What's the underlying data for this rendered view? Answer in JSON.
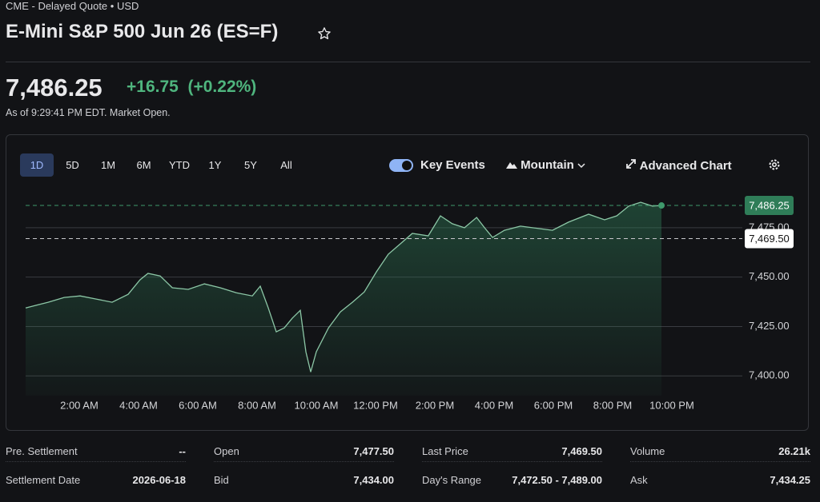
{
  "header": {
    "exchange": "CME - Delayed Quote • USD",
    "title": "E-Mini S&P 500 Jun 26 (ES=F)"
  },
  "quote": {
    "price": "7,486.25",
    "change": "+16.75",
    "change_pct": "(+0.22%)",
    "as_of": "As of 9:29:41 PM EDT. Market Open."
  },
  "toolbar": {
    "ranges": [
      "1D",
      "5D",
      "1M",
      "6M",
      "YTD",
      "1Y",
      "5Y",
      "All"
    ],
    "key_events": "Key Events",
    "chart_type": "Mountain",
    "advanced": "Advanced Chart"
  },
  "chart_data": {
    "type": "area",
    "color": "#8cc7a6",
    "x": [
      0.19,
      0.95,
      1.49,
      2.03,
      2.57,
      3.11,
      3.65,
      4.05,
      4.32,
      4.73,
      5.14,
      5.68,
      6.22,
      6.76,
      7.3,
      7.84,
      8.11,
      8.38,
      8.65,
      8.92,
      9.19,
      9.46,
      9.65,
      9.81,
      10,
      10.41,
      10.81,
      11.22,
      11.62,
      12.03,
      12.43,
      12.84,
      13.24,
      13.78,
      14.19,
      14.59,
      15,
      15.41,
      15.68,
      15.95,
      16.35,
      16.89,
      17.97,
      18.51,
      19.19,
      19.73,
      20.14,
      20.54,
      20.95,
      21.35,
      21.65
    ],
    "values": [
      7434.4,
      7437.3,
      7439.7,
      7440.5,
      7438.9,
      7437.3,
      7441.3,
      7448.6,
      7451.9,
      7450.6,
      7444.6,
      7443.8,
      7446.6,
      7444.6,
      7442.1,
      7440.5,
      7445.4,
      7434.4,
      7422.3,
      7424.3,
      7429.2,
      7433.2,
      7412.2,
      7402,
      7412.2,
      7424.3,
      7432.4,
      7437.3,
      7442.5,
      7452.7,
      7461.6,
      7466.9,
      7472.1,
      7470.9,
      7481,
      7477,
      7475,
      7480.2,
      7475,
      7470.1,
      7473.7,
      7475.8,
      7473.7,
      7477.8,
      7481.8,
      7479,
      7481,
      7485.9,
      7487.9,
      7485.9,
      7486.25
    ],
    "xlim": [
      0.19,
      24
    ],
    "xticks": [
      {
        "value": 2,
        "label": "2:00 AM"
      },
      {
        "value": 4,
        "label": "4:00 AM"
      },
      {
        "value": 6,
        "label": "6:00 AM"
      },
      {
        "value": 8,
        "label": "8:00 AM"
      },
      {
        "value": 10,
        "label": "10:00 AM"
      },
      {
        "value": 12,
        "label": "12:00 PM"
      },
      {
        "value": 14,
        "label": "2:00 PM"
      },
      {
        "value": 16,
        "label": "4:00 PM"
      },
      {
        "value": 18,
        "label": "6:00 PM"
      },
      {
        "value": 20,
        "label": "8:00 PM"
      },
      {
        "value": 22,
        "label": "10:00 PM"
      }
    ],
    "ylim": [
      7390,
      7498
    ],
    "yticks": [
      {
        "value": 7400,
        "label": "7,400.00"
      },
      {
        "value": 7425,
        "label": "7,425.00"
      },
      {
        "value": 7450,
        "label": "7,450.00"
      },
      {
        "value": 7475,
        "label": "7,475.00"
      }
    ],
    "grid": true,
    "last": {
      "value": 7486.25,
      "label": "7,486.25"
    },
    "prev_close": {
      "value": 7469.5,
      "label": "7,469.50"
    }
  },
  "stats": [
    [
      {
        "label": "Pre. Settlement",
        "value": "--"
      },
      {
        "label": "Open",
        "value": "7,477.50"
      },
      {
        "label": "Last Price",
        "value": "7,469.50"
      },
      {
        "label": "Volume",
        "value": "26.21k"
      }
    ],
    [
      {
        "label": "Settlement Date",
        "value": "2026-06-18"
      },
      {
        "label": "Bid",
        "value": "7,434.00"
      },
      {
        "label": "Day's Range",
        "value": "7,472.50 - 7,489.00"
      },
      {
        "label": "Ask",
        "value": "7,434.25"
      }
    ]
  ]
}
